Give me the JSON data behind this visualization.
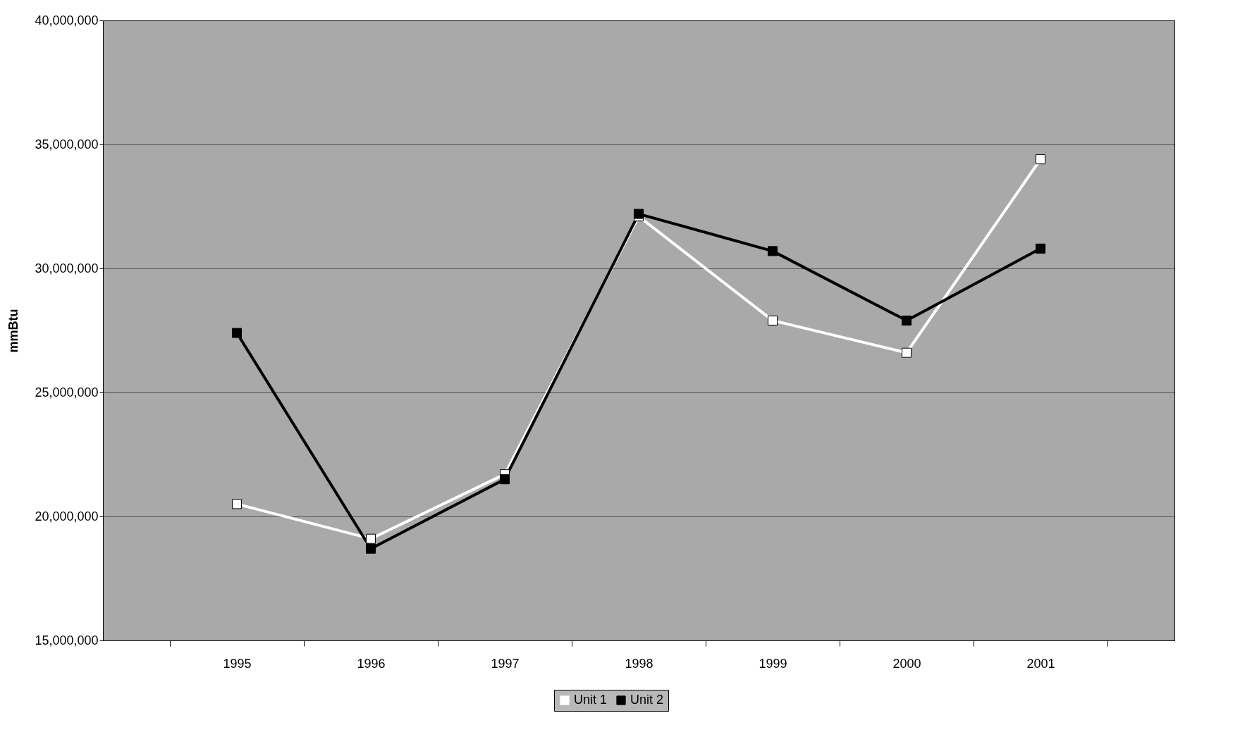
{
  "chart_data": {
    "type": "line",
    "ylabel": "mmBtu",
    "categories": [
      "1995",
      "1996",
      "1997",
      "1998",
      "1999",
      "2000",
      "2001"
    ],
    "series": [
      {
        "name": "Unit 1",
        "color": "#ffffff",
        "values": [
          20500000,
          19100000,
          21700000,
          32100000,
          27900000,
          26600000,
          34400000
        ]
      },
      {
        "name": "Unit 2",
        "color": "#000000",
        "values": [
          27400000,
          18700000,
          21500000,
          32200000,
          30700000,
          27900000,
          30800000
        ]
      }
    ],
    "ylim": [
      15000000,
      40000000
    ],
    "yticks": [
      {
        "value": 15000000,
        "label": "15,000,000"
      },
      {
        "value": 20000000,
        "label": "20,000,000"
      },
      {
        "value": 25000000,
        "label": "25,000,000"
      },
      {
        "value": 30000000,
        "label": "30,000,000"
      },
      {
        "value": 35000000,
        "label": "35,000,000"
      },
      {
        "value": 40000000,
        "label": "40,000,000"
      }
    ],
    "grid": "y",
    "legend": "bottom",
    "marker": "square",
    "line_style": "solid"
  }
}
